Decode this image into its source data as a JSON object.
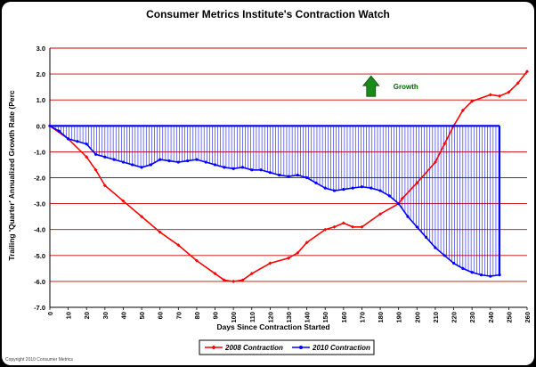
{
  "chart_data": {
    "type": "line",
    "title": "Consumer Metrics Institute's Contraction Watch",
    "xlabel": "Days Since Contraction Started",
    "ylabel": "Trailing 'Quarter' Annualized Growth Rate (Perc",
    "xlim": [
      0,
      260
    ],
    "ylim": [
      -7.0,
      3.0
    ],
    "x_ticks": [
      0,
      10,
      20,
      30,
      40,
      50,
      60,
      70,
      80,
      90,
      100,
      110,
      120,
      130,
      140,
      150,
      160,
      170,
      180,
      190,
      200,
      210,
      220,
      230,
      240,
      250,
      260
    ],
    "y_ticks": [
      3.0,
      2.0,
      1.0,
      0.0,
      -1.0,
      -2.0,
      -3.0,
      -4.0,
      -5.0,
      -6.0,
      -7.0
    ],
    "grid": "horizontal",
    "series": [
      {
        "name": "2008 Contraction",
        "color": "#ff0000",
        "marker": "diamond",
        "x": [
          0,
          10,
          20,
          25,
          30,
          40,
          50,
          60,
          70,
          80,
          90,
          95,
          100,
          105,
          110,
          120,
          130,
          135,
          140,
          150,
          155,
          160,
          165,
          170,
          180,
          190,
          192,
          200,
          210,
          215,
          220,
          225,
          230,
          240,
          245,
          250,
          255,
          260
        ],
        "values": [
          0,
          -0.5,
          -1.2,
          -1.7,
          -2.3,
          -2.9,
          -3.5,
          -4.1,
          -4.6,
          -5.2,
          -5.7,
          -5.95,
          -6.0,
          -5.95,
          -5.7,
          -5.3,
          -5.1,
          -4.9,
          -4.5,
          -4.0,
          -3.9,
          -3.75,
          -3.9,
          -3.9,
          -3.4,
          -3.0,
          -2.8,
          -2.2,
          -1.4,
          -0.7,
          0.0,
          0.6,
          0.95,
          1.2,
          1.15,
          1.3,
          1.65,
          2.1
        ]
      },
      {
        "name": "2010 Contraction",
        "color": "#0000ff",
        "marker": "circle",
        "x": [
          0,
          5,
          10,
          15,
          20,
          25,
          30,
          35,
          40,
          45,
          50,
          55,
          60,
          65,
          70,
          75,
          80,
          85,
          90,
          95,
          100,
          105,
          110,
          115,
          120,
          125,
          130,
          135,
          140,
          145,
          150,
          155,
          160,
          165,
          170,
          175,
          180,
          185,
          190,
          195,
          200,
          205,
          210,
          215,
          220,
          225,
          230,
          235,
          240,
          245
        ],
        "values": [
          0,
          -0.2,
          -0.5,
          -0.6,
          -0.7,
          -1.1,
          -1.2,
          -1.3,
          -1.4,
          -1.5,
          -1.6,
          -1.5,
          -1.3,
          -1.35,
          -1.4,
          -1.35,
          -1.3,
          -1.4,
          -1.5,
          -1.6,
          -1.65,
          -1.6,
          -1.7,
          -1.7,
          -1.8,
          -1.9,
          -1.95,
          -1.9,
          -2.0,
          -2.2,
          -2.4,
          -2.5,
          -2.45,
          -2.4,
          -2.35,
          -2.4,
          -2.5,
          -2.7,
          -3.0,
          -3.5,
          -3.9,
          -4.3,
          -4.7,
          -5.0,
          -5.3,
          -5.5,
          -5.65,
          -5.75,
          -5.8,
          -5.75
        ]
      }
    ],
    "fill": {
      "series": "2010 Contraction",
      "to": 0,
      "style": "vertical-hatch"
    },
    "annotations": [
      {
        "text": "Growth",
        "icon": "up-arrow-icon",
        "x": 175,
        "y": 1.0,
        "color": "#006600"
      }
    ],
    "legend": "bottom-center",
    "copyright": "Copyright 2010 Consumer Metrics"
  }
}
